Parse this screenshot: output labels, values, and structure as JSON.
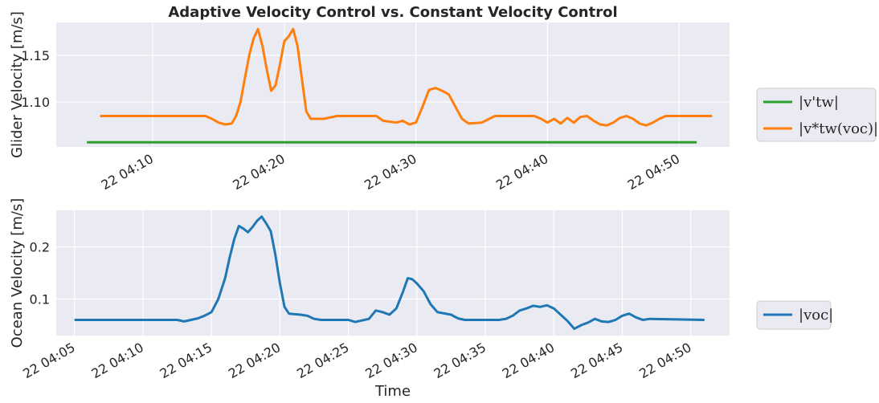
{
  "chart_data": [
    {
      "type": "line",
      "title": "Adaptive Velocity Control vs. Constant Velocity Control",
      "ylabel": "Glider Velocity [m/s]",
      "xlabel": "",
      "ylim": [
        1.052,
        1.185
      ],
      "xlim": [
        "04:02:40",
        "04:53:50"
      ],
      "yticks": [
        1.1,
        1.15
      ],
      "ytick_labels": [
        "1.10",
        "1.15"
      ],
      "xticks": [
        "04:10",
        "04:20",
        "04:30",
        "04:40",
        "04:50"
      ],
      "xtick_labels": [
        "22 04:10",
        "22 04:20",
        "22 04:30",
        "22 04:40",
        "22 04:50"
      ],
      "grid": true,
      "legend": "outside-right",
      "series": [
        {
          "name": "|v'tw|",
          "legend_label": "|v'tw|",
          "color": "#2ca02c",
          "points": [
            [
              "04:05:00",
              1.057
            ],
            [
              "04:51:20",
              1.057
            ]
          ]
        },
        {
          "name": "|v*tw(voc)|",
          "legend_label": "|v*tw(voc)|",
          "color": "#ff7f0e",
          "points": [
            [
              "04:06:00",
              1.085
            ],
            [
              "04:14:00",
              1.085
            ],
            [
              "04:14:30",
              1.082
            ],
            [
              "04:15:00",
              1.078
            ],
            [
              "04:15:30",
              1.076
            ],
            [
              "04:16:00",
              1.077
            ],
            [
              "04:16:20",
              1.085
            ],
            [
              "04:16:40",
              1.1
            ],
            [
              "04:17:00",
              1.125
            ],
            [
              "04:17:20",
              1.15
            ],
            [
              "04:17:40",
              1.168
            ],
            [
              "04:18:00",
              1.178
            ],
            [
              "04:18:20",
              1.16
            ],
            [
              "04:18:40",
              1.135
            ],
            [
              "04:19:00",
              1.112
            ],
            [
              "04:19:20",
              1.118
            ],
            [
              "04:19:40",
              1.14
            ],
            [
              "04:20:00",
              1.165
            ],
            [
              "04:20:20",
              1.17
            ],
            [
              "04:20:40",
              1.178
            ],
            [
              "04:21:00",
              1.16
            ],
            [
              "04:21:20",
              1.125
            ],
            [
              "04:21:40",
              1.09
            ],
            [
              "04:22:00",
              1.082
            ],
            [
              "04:23:00",
              1.082
            ],
            [
              "04:24:00",
              1.085
            ],
            [
              "04:27:00",
              1.085
            ],
            [
              "04:27:30",
              1.08
            ],
            [
              "04:28:30",
              1.078
            ],
            [
              "04:29:00",
              1.08
            ],
            [
              "04:29:30",
              1.076
            ],
            [
              "04:30:00",
              1.078
            ],
            [
              "04:30:30",
              1.095
            ],
            [
              "04:31:00",
              1.113
            ],
            [
              "04:31:30",
              1.115
            ],
            [
              "04:32:00",
              1.112
            ],
            [
              "04:32:30",
              1.108
            ],
            [
              "04:33:00",
              1.095
            ],
            [
              "04:33:30",
              1.082
            ],
            [
              "04:34:00",
              1.077
            ],
            [
              "04:35:00",
              1.078
            ],
            [
              "04:36:00",
              1.085
            ],
            [
              "04:39:00",
              1.085
            ],
            [
              "04:39:30",
              1.082
            ],
            [
              "04:40:00",
              1.078
            ],
            [
              "04:40:30",
              1.082
            ],
            [
              "04:41:00",
              1.077
            ],
            [
              "04:41:30",
              1.083
            ],
            [
              "04:42:00",
              1.078
            ],
            [
              "04:42:30",
              1.084
            ],
            [
              "04:43:00",
              1.085
            ],
            [
              "04:43:30",
              1.08
            ],
            [
              "04:44:00",
              1.076
            ],
            [
              "04:44:30",
              1.075
            ],
            [
              "04:45:00",
              1.078
            ],
            [
              "04:45:30",
              1.083
            ],
            [
              "04:46:00",
              1.085
            ],
            [
              "04:46:30",
              1.082
            ],
            [
              "04:47:00",
              1.077
            ],
            [
              "04:47:30",
              1.075
            ],
            [
              "04:48:00",
              1.078
            ],
            [
              "04:48:30",
              1.082
            ],
            [
              "04:49:00",
              1.085
            ],
            [
              "04:52:30",
              1.085
            ]
          ]
        }
      ]
    },
    {
      "type": "line",
      "title": "",
      "ylabel": "Ocean Velocity [m/s]",
      "xlabel": "Time",
      "ylim": [
        0.03,
        0.27
      ],
      "xlim": [
        "04:03:40",
        "04:52:50"
      ],
      "yticks": [
        0.1,
        0.2
      ],
      "ytick_labels": [
        "0.1",
        "0.2"
      ],
      "xticks": [
        "04:05",
        "04:10",
        "04:15",
        "04:20",
        "04:25",
        "04:30",
        "04:35",
        "04:40",
        "04:45",
        "04:50"
      ],
      "xtick_labels": [
        "22 04:05",
        "22 04:10",
        "22 04:15",
        "22 04:20",
        "22 04:25",
        "22 04:30",
        "22 04:35",
        "22 04:40",
        "22 04:45",
        "22 04:50"
      ],
      "grid": true,
      "legend": "outside-right",
      "series": [
        {
          "name": "|voc|",
          "legend_label": "|voc|",
          "color": "#1f77b4",
          "points": [
            [
              "04:05:00",
              0.06
            ],
            [
              "04:12:30",
              0.06
            ],
            [
              "04:13:00",
              0.057
            ],
            [
              "04:13:30",
              0.06
            ],
            [
              "04:14:00",
              0.063
            ],
            [
              "04:14:30",
              0.068
            ],
            [
              "04:15:00",
              0.075
            ],
            [
              "04:15:30",
              0.1
            ],
            [
              "04:16:00",
              0.14
            ],
            [
              "04:16:20",
              0.18
            ],
            [
              "04:16:40",
              0.215
            ],
            [
              "04:17:00",
              0.24
            ],
            [
              "04:17:20",
              0.235
            ],
            [
              "04:17:40",
              0.228
            ],
            [
              "04:18:00",
              0.238
            ],
            [
              "04:18:20",
              0.25
            ],
            [
              "04:18:40",
              0.258
            ],
            [
              "04:19:00",
              0.245
            ],
            [
              "04:19:20",
              0.23
            ],
            [
              "04:19:40",
              0.185
            ],
            [
              "04:20:00",
              0.13
            ],
            [
              "04:20:20",
              0.085
            ],
            [
              "04:20:40",
              0.072
            ],
            [
              "04:21:30",
              0.07
            ],
            [
              "04:22:00",
              0.068
            ],
            [
              "04:22:30",
              0.062
            ],
            [
              "04:23:00",
              0.06
            ],
            [
              "04:25:00",
              0.06
            ],
            [
              "04:25:30",
              0.056
            ],
            [
              "04:26:30",
              0.062
            ],
            [
              "04:27:00",
              0.078
            ],
            [
              "04:27:30",
              0.075
            ],
            [
              "04:28:00",
              0.07
            ],
            [
              "04:28:30",
              0.082
            ],
            [
              "04:29:00",
              0.115
            ],
            [
              "04:29:20",
              0.14
            ],
            [
              "04:29:40",
              0.138
            ],
            [
              "04:30:00",
              0.13
            ],
            [
              "04:30:30",
              0.115
            ],
            [
              "04:31:00",
              0.09
            ],
            [
              "04:31:30",
              0.075
            ],
            [
              "04:32:30",
              0.07
            ],
            [
              "04:33:00",
              0.063
            ],
            [
              "04:33:30",
              0.06
            ],
            [
              "04:36:00",
              0.06
            ],
            [
              "04:36:30",
              0.062
            ],
            [
              "04:37:00",
              0.068
            ],
            [
              "04:37:30",
              0.078
            ],
            [
              "04:38:00",
              0.082
            ],
            [
              "04:38:30",
              0.087
            ],
            [
              "04:39:00",
              0.085
            ],
            [
              "04:39:30",
              0.088
            ],
            [
              "04:40:00",
              0.082
            ],
            [
              "04:40:30",
              0.07
            ],
            [
              "04:41:00",
              0.058
            ],
            [
              "04:41:30",
              0.043
            ],
            [
              "04:42:00",
              0.05
            ],
            [
              "04:42:30",
              0.055
            ],
            [
              "04:43:00",
              0.062
            ],
            [
              "04:43:30",
              0.057
            ],
            [
              "04:44:00",
              0.056
            ],
            [
              "04:44:30",
              0.06
            ],
            [
              "04:45:00",
              0.068
            ],
            [
              "04:45:30",
              0.072
            ],
            [
              "04:46:00",
              0.065
            ],
            [
              "04:46:30",
              0.06
            ],
            [
              "04:47:00",
              0.062
            ],
            [
              "04:51:00",
              0.06
            ]
          ]
        }
      ]
    }
  ]
}
